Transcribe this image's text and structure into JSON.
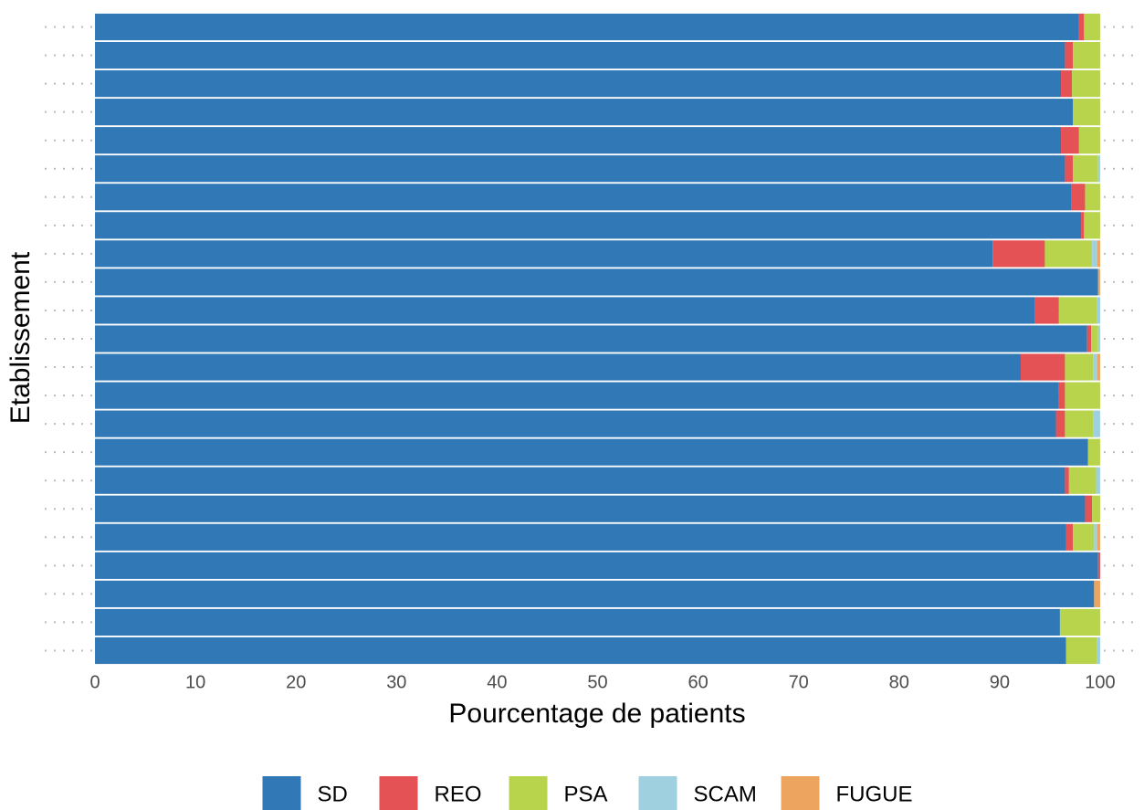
{
  "chart_data": {
    "type": "stacked_barh",
    "xlabel": "Pourcentage de patients",
    "ylabel": "Etablissement",
    "categories": [
      null,
      null,
      null,
      null,
      null,
      null,
      null,
      null,
      null,
      null,
      null,
      null,
      null,
      null,
      null,
      null,
      null,
      null,
      null,
      null,
      null,
      null,
      null
    ],
    "series": [
      {
        "name": "SD",
        "color": "#3179b6",
        "values": [
          97.9,
          96.5,
          96.1,
          97.3,
          96.1,
          96.5,
          97.1,
          98.1,
          89.3,
          99.8,
          93.5,
          98.7,
          92.1,
          95.9,
          95.6,
          98.8,
          96.5,
          98.5,
          96.6,
          99.8,
          99.4,
          96.0,
          96.6
        ]
      },
      {
        "name": "REO",
        "color": "#e45256",
        "values": [
          0.5,
          0.8,
          1.1,
          0,
          1.8,
          0.8,
          1.4,
          0.3,
          5.2,
          0,
          2.4,
          0.4,
          4.4,
          0.6,
          0.9,
          0,
          0.4,
          0.7,
          0.7,
          0.2,
          0,
          0,
          0
        ]
      },
      {
        "name": "PSA",
        "color": "#b7d44c",
        "values": [
          1.6,
          2.7,
          2.8,
          2.7,
          2.1,
          2.5,
          1.5,
          1.6,
          4.7,
          0,
          3.8,
          0.7,
          2.8,
          3.5,
          2.8,
          1.2,
          2.7,
          0.8,
          2.1,
          0,
          0,
          4.0,
          3.1
        ]
      },
      {
        "name": "SCAM",
        "color": "#9fd0e0",
        "values": [
          0,
          0,
          0,
          0,
          0,
          0.2,
          0,
          0,
          0.5,
          0,
          0.3,
          0.2,
          0.4,
          0,
          0.7,
          0,
          0.4,
          0,
          0.3,
          0,
          0,
          0,
          0.3
        ]
      },
      {
        "name": "FUGUE",
        "color": "#eda45e",
        "values": [
          0,
          0,
          0,
          0,
          0,
          0,
          0,
          0,
          0.3,
          0.2,
          0,
          0,
          0.3,
          0,
          0,
          0,
          0,
          0,
          0.3,
          0,
          0.6,
          0,
          0
        ]
      }
    ],
    "xlim": [
      -5,
      104
    ],
    "xticks": [
      0,
      10,
      20,
      30,
      40,
      50,
      60,
      70,
      80,
      90,
      100
    ],
    "legend": "bottom"
  }
}
